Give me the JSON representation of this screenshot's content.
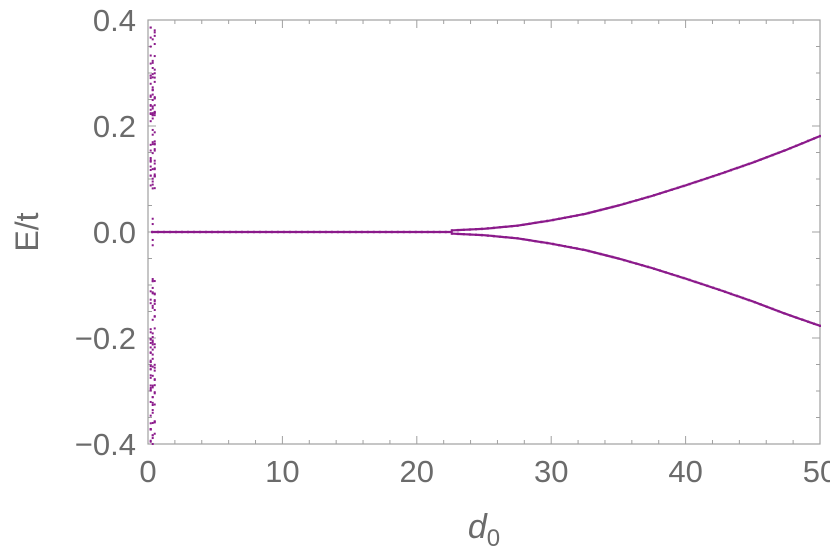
{
  "chart_data": {
    "type": "scatter",
    "title": "",
    "xlabel": "d",
    "xlabel_subscript": "0",
    "ylabel": "E/t",
    "xlim": [
      0,
      50
    ],
    "ylim": [
      -0.4,
      0.4
    ],
    "grid": false,
    "frame": true,
    "color": "#8b1a8b",
    "x_ticks": [
      {
        "value": 0,
        "label": "0"
      },
      {
        "value": 10,
        "label": "10"
      },
      {
        "value": 20,
        "label": "20"
      },
      {
        "value": 30,
        "label": "30"
      },
      {
        "value": 40,
        "label": "40"
      },
      {
        "value": 50,
        "label": "50"
      }
    ],
    "y_ticks": [
      {
        "value": -0.4,
        "label": "−0.4"
      },
      {
        "value": -0.2,
        "label": "−0.2"
      },
      {
        "value": 0.0,
        "label": "0.0"
      },
      {
        "value": 0.2,
        "label": "0.2"
      },
      {
        "value": 0.4,
        "label": "0.4"
      }
    ],
    "series": [
      {
        "kind": "zero-mode-line",
        "x": [
          0.3,
          22.6
        ],
        "y": [
          0.0,
          0.0
        ]
      },
      {
        "kind": "upper-branch",
        "x": [
          22.6,
          25,
          27.5,
          30,
          32.5,
          35,
          37.5,
          40,
          42.5,
          45,
          47.5,
          50
        ],
        "y": [
          0.003,
          0.006,
          0.012,
          0.022,
          0.034,
          0.05,
          0.068,
          0.088,
          0.109,
          0.131,
          0.155,
          0.181
        ]
      },
      {
        "kind": "lower-branch",
        "x": [
          22.6,
          25,
          27.5,
          30,
          32.5,
          35,
          37.5,
          40,
          42.5,
          45,
          47.5,
          50
        ],
        "y": [
          -0.003,
          -0.006,
          -0.012,
          -0.022,
          -0.034,
          -0.05,
          -0.068,
          -0.088,
          -0.109,
          -0.131,
          -0.155,
          -0.177
        ]
      },
      {
        "kind": "continuum-states-at-d0",
        "x": [
          0.2,
          0.35,
          0.5
        ],
        "y_bands": [
          [
            0.08,
            0.4
          ],
          [
            -0.4,
            -0.08
          ]
        ],
        "near_zero_points": [
          0.025,
          0.015,
          -0.015,
          -0.025
        ]
      }
    ]
  }
}
